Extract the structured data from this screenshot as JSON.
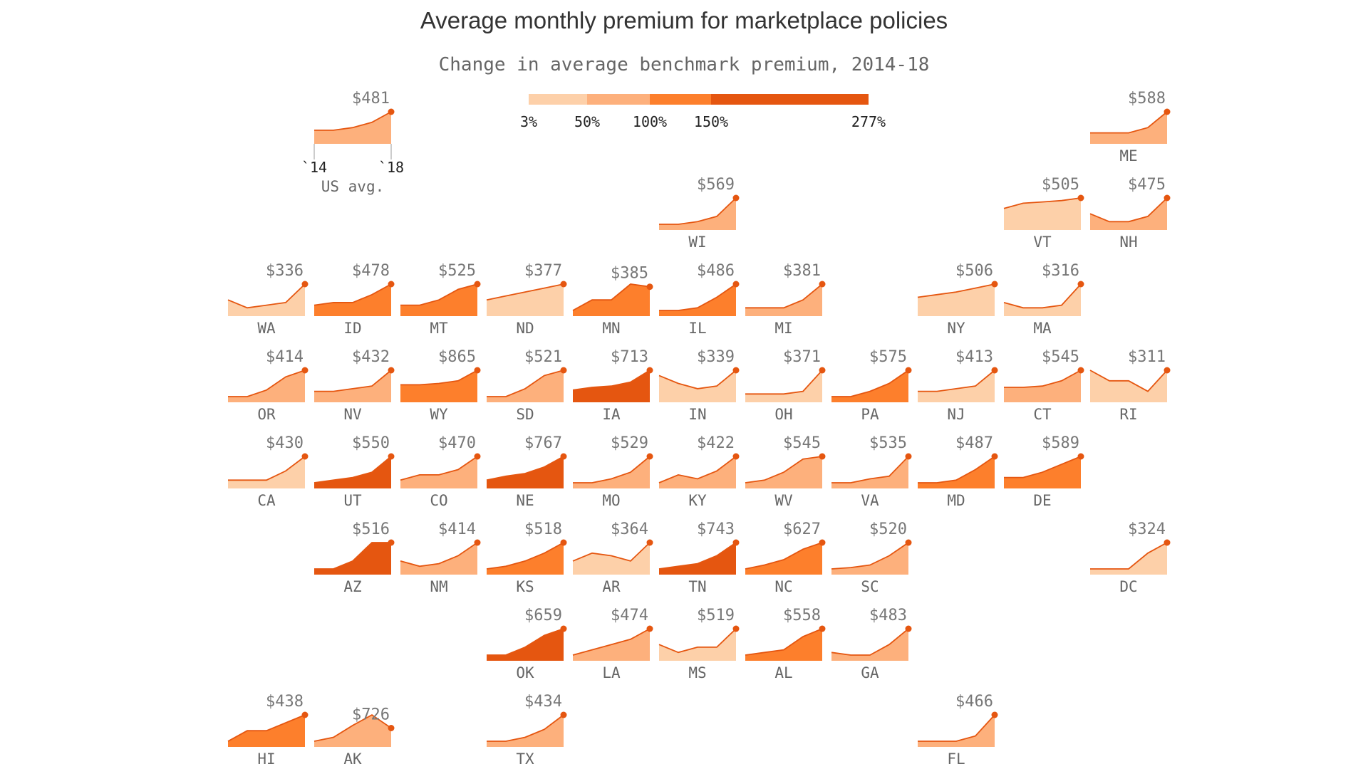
{
  "chart_data": {
    "type": "area",
    "title": "Average monthly premium for marketplace policies",
    "subtitle": "Change in average benchmark premium, 2014-18",
    "x_start_label": "`14",
    "x_end_label": "`18",
    "legend": {
      "ticks": [
        "3%",
        "50%",
        "100%",
        "150%",
        "277%"
      ],
      "bins": [
        {
          "from": 3,
          "to": 50,
          "color": "#fdd0a9"
        },
        {
          "from": 50,
          "to": 100,
          "color": "#fdb07c"
        },
        {
          "from": 100,
          "to": 150,
          "color": "#fd7f2c"
        },
        {
          "from": 150,
          "to": 277,
          "color": "#e55610"
        }
      ]
    },
    "line_color": "#e55610",
    "us_average": {
      "label": "US avg.",
      "value_label": "$481",
      "shape": [
        0.3,
        0.3,
        0.4,
        0.6,
        1.0
      ],
      "color": "#fdb07c"
    },
    "states": [
      {
        "abbr": "ME",
        "value_label": "$588",
        "shape": [
          0.2,
          0.2,
          0.2,
          0.4,
          1.0
        ],
        "color": "#fdb07c",
        "col": 10,
        "row": 0
      },
      {
        "abbr": "WI",
        "value_label": "$569",
        "shape": [
          0.0,
          0.0,
          0.1,
          0.3,
          1.0
        ],
        "color": "#fdb07c",
        "col": 5,
        "row": 1
      },
      {
        "abbr": "VT",
        "value_label": "$505",
        "shape": [
          0.6,
          0.8,
          0.85,
          0.9,
          1.0
        ],
        "color": "#fdd0a9",
        "col": 9,
        "row": 1
      },
      {
        "abbr": "NH",
        "value_label": "$475",
        "shape": [
          0.4,
          0.1,
          0.1,
          0.3,
          1.0
        ],
        "color": "#fdb07c",
        "col": 10,
        "row": 1
      },
      {
        "abbr": "WA",
        "value_label": "$336",
        "shape": [
          0.4,
          0.1,
          0.2,
          0.3,
          1.0
        ],
        "color": "#fdd0a9",
        "col": 0,
        "row": 2
      },
      {
        "abbr": "ID",
        "value_label": "$478",
        "shape": [
          0.2,
          0.3,
          0.3,
          0.6,
          1.0
        ],
        "color": "#fd7f2c",
        "col": 1,
        "row": 2
      },
      {
        "abbr": "MT",
        "value_label": "$525",
        "shape": [
          0.2,
          0.2,
          0.4,
          0.8,
          1.0
        ],
        "color": "#fd7f2c",
        "col": 2,
        "row": 2
      },
      {
        "abbr": "ND",
        "value_label": "$377",
        "shape": [
          0.4,
          0.55,
          0.7,
          0.85,
          1.0
        ],
        "color": "#fdd0a9",
        "col": 3,
        "row": 2
      },
      {
        "abbr": "MN",
        "value_label": "$385",
        "shape": [
          0.0,
          0.4,
          0.4,
          1.0,
          0.9
        ],
        "color": "#fd7f2c",
        "col": 4,
        "row": 2
      },
      {
        "abbr": "IL",
        "value_label": "$486",
        "shape": [
          0.0,
          0.0,
          0.1,
          0.5,
          1.0
        ],
        "color": "#fd7f2c",
        "col": 5,
        "row": 2
      },
      {
        "abbr": "MI",
        "value_label": "$381",
        "shape": [
          0.1,
          0.1,
          0.1,
          0.4,
          1.0
        ],
        "color": "#fdb07c",
        "col": 6,
        "row": 2
      },
      {
        "abbr": "NY",
        "value_label": "$506",
        "shape": [
          0.5,
          0.6,
          0.7,
          0.85,
          1.0
        ],
        "color": "#fdd0a9",
        "col": 8,
        "row": 2
      },
      {
        "abbr": "MA",
        "value_label": "$316",
        "shape": [
          0.3,
          0.1,
          0.1,
          0.2,
          1.0
        ],
        "color": "#fdd0a9",
        "col": 9,
        "row": 2
      },
      {
        "abbr": "OR",
        "value_label": "$414",
        "shape": [
          0.0,
          0.0,
          0.25,
          0.75,
          1.0
        ],
        "color": "#fdb07c",
        "col": 0,
        "row": 3
      },
      {
        "abbr": "NV",
        "value_label": "$432",
        "shape": [
          0.2,
          0.2,
          0.3,
          0.4,
          1.0
        ],
        "color": "#fdb07c",
        "col": 1,
        "row": 3
      },
      {
        "abbr": "WY",
        "value_label": "$865",
        "shape": [
          0.45,
          0.45,
          0.5,
          0.6,
          1.0
        ],
        "color": "#fd7f2c",
        "col": 2,
        "row": 3
      },
      {
        "abbr": "SD",
        "value_label": "$521",
        "shape": [
          0.0,
          0.0,
          0.3,
          0.8,
          1.0
        ],
        "color": "#fdb07c",
        "col": 3,
        "row": 3
      },
      {
        "abbr": "IA",
        "value_label": "$713",
        "shape": [
          0.25,
          0.35,
          0.4,
          0.55,
          1.0
        ],
        "color": "#e55610",
        "col": 4,
        "row": 3
      },
      {
        "abbr": "IN",
        "value_label": "$339",
        "shape": [
          0.8,
          0.5,
          0.3,
          0.4,
          1.0
        ],
        "color": "#fdd0a9",
        "col": 5,
        "row": 3
      },
      {
        "abbr": "OH",
        "value_label": "$371",
        "shape": [
          0.1,
          0.1,
          0.1,
          0.2,
          1.0
        ],
        "color": "#fdd0a9",
        "col": 6,
        "row": 3
      },
      {
        "abbr": "PA",
        "value_label": "$575",
        "shape": [
          0.0,
          0.0,
          0.2,
          0.5,
          1.0
        ],
        "color": "#fd7f2c",
        "col": 7,
        "row": 3
      },
      {
        "abbr": "NJ",
        "value_label": "$413",
        "shape": [
          0.2,
          0.2,
          0.3,
          0.4,
          1.0
        ],
        "color": "#fdd0a9",
        "col": 8,
        "row": 3
      },
      {
        "abbr": "CT",
        "value_label": "$545",
        "shape": [
          0.35,
          0.35,
          0.4,
          0.6,
          1.0
        ],
        "color": "#fdb07c",
        "col": 9,
        "row": 3
      },
      {
        "abbr": "RI",
        "value_label": "$311",
        "shape": [
          1.0,
          0.6,
          0.6,
          0.2,
          1.0
        ],
        "color": "#fdd0a9",
        "col": 10,
        "row": 3
      },
      {
        "abbr": "CA",
        "value_label": "$430",
        "shape": [
          0.1,
          0.1,
          0.1,
          0.45,
          1.0
        ],
        "color": "#fdd0a9",
        "col": 0,
        "row": 4
      },
      {
        "abbr": "UT",
        "value_label": "$550",
        "shape": [
          0.0,
          0.1,
          0.2,
          0.4,
          1.0
        ],
        "color": "#e55610",
        "col": 1,
        "row": 4
      },
      {
        "abbr": "CO",
        "value_label": "$470",
        "shape": [
          0.1,
          0.3,
          0.3,
          0.5,
          1.0
        ],
        "color": "#fdb07c",
        "col": 2,
        "row": 4
      },
      {
        "abbr": "NE",
        "value_label": "$767",
        "shape": [
          0.1,
          0.25,
          0.35,
          0.6,
          1.0
        ],
        "color": "#e55610",
        "col": 3,
        "row": 4
      },
      {
        "abbr": "MO",
        "value_label": "$529",
        "shape": [
          0.0,
          0.0,
          0.15,
          0.4,
          1.0
        ],
        "color": "#fdb07c",
        "col": 4,
        "row": 4
      },
      {
        "abbr": "KY",
        "value_label": "$422",
        "shape": [
          0.0,
          0.3,
          0.15,
          0.45,
          1.0
        ],
        "color": "#fdb07c",
        "col": 5,
        "row": 4
      },
      {
        "abbr": "WV",
        "value_label": "$545",
        "shape": [
          0.0,
          0.1,
          0.4,
          0.9,
          1.0
        ],
        "color": "#fdb07c",
        "col": 6,
        "row": 4
      },
      {
        "abbr": "VA",
        "value_label": "$535",
        "shape": [
          0.0,
          0.0,
          0.15,
          0.25,
          1.0
        ],
        "color": "#fdb07c",
        "col": 7,
        "row": 4
      },
      {
        "abbr": "MD",
        "value_label": "$487",
        "shape": [
          0.0,
          0.0,
          0.1,
          0.5,
          1.0
        ],
        "color": "#fd7f2c",
        "col": 8,
        "row": 4
      },
      {
        "abbr": "DE",
        "value_label": "$589",
        "shape": [
          0.2,
          0.2,
          0.4,
          0.7,
          1.0
        ],
        "color": "#fd7f2c",
        "col": 9,
        "row": 4
      },
      {
        "abbr": "AZ",
        "value_label": "$516",
        "shape": [
          0.0,
          0.0,
          0.3,
          1.0,
          1.0
        ],
        "color": "#e55610",
        "col": 1,
        "row": 5
      },
      {
        "abbr": "NM",
        "value_label": "$414",
        "shape": [
          0.3,
          0.1,
          0.2,
          0.5,
          1.0
        ],
        "color": "#fdb07c",
        "col": 2,
        "row": 5
      },
      {
        "abbr": "KS",
        "value_label": "$518",
        "shape": [
          0.0,
          0.1,
          0.3,
          0.6,
          1.0
        ],
        "color": "#fd7f2c",
        "col": 3,
        "row": 5
      },
      {
        "abbr": "AR",
        "value_label": "$364",
        "shape": [
          0.3,
          0.6,
          0.5,
          0.3,
          1.0
        ],
        "color": "#fdd0a9",
        "col": 4,
        "row": 5
      },
      {
        "abbr": "TN",
        "value_label": "$743",
        "shape": [
          0.0,
          0.1,
          0.2,
          0.5,
          1.0
        ],
        "color": "#e55610",
        "col": 5,
        "row": 5
      },
      {
        "abbr": "NC",
        "value_label": "$627",
        "shape": [
          0.0,
          0.15,
          0.35,
          0.75,
          1.0
        ],
        "color": "#fd7f2c",
        "col": 6,
        "row": 5
      },
      {
        "abbr": "SC",
        "value_label": "$520",
        "shape": [
          0.0,
          0.05,
          0.15,
          0.5,
          1.0
        ],
        "color": "#fdb07c",
        "col": 7,
        "row": 5
      },
      {
        "abbr": "DC",
        "value_label": "$324",
        "shape": [
          0.0,
          0.0,
          0.0,
          0.6,
          1.0
        ],
        "color": "#fdd0a9",
        "col": 10,
        "row": 5
      },
      {
        "abbr": "OK",
        "value_label": "$659",
        "shape": [
          0.0,
          0.0,
          0.3,
          0.75,
          1.0
        ],
        "color": "#e55610",
        "col": 3,
        "row": 6
      },
      {
        "abbr": "LA",
        "value_label": "$474",
        "shape": [
          0.0,
          0.2,
          0.4,
          0.6,
          1.0
        ],
        "color": "#fdb07c",
        "col": 4,
        "row": 6
      },
      {
        "abbr": "MS",
        "value_label": "$519",
        "shape": [
          0.4,
          0.1,
          0.3,
          0.3,
          1.0
        ],
        "color": "#fdd0a9",
        "col": 5,
        "row": 6
      },
      {
        "abbr": "AL",
        "value_label": "$558",
        "shape": [
          0.0,
          0.1,
          0.2,
          0.7,
          1.0
        ],
        "color": "#fd7f2c",
        "col": 6,
        "row": 6
      },
      {
        "abbr": "GA",
        "value_label": "$483",
        "shape": [
          0.1,
          0.0,
          0.0,
          0.4,
          1.0
        ],
        "color": "#fdb07c",
        "col": 7,
        "row": 6
      },
      {
        "abbr": "HI",
        "value_label": "$438",
        "shape": [
          0.0,
          0.4,
          0.4,
          0.7,
          1.0
        ],
        "color": "#fd7f2c",
        "col": 0,
        "row": 7
      },
      {
        "abbr": "AK",
        "value_label": "$726",
        "shape": [
          0.0,
          0.15,
          0.6,
          1.0,
          0.5
        ],
        "color": "#fdb07c",
        "col": 1,
        "row": 7
      },
      {
        "abbr": "TX",
        "value_label": "$434",
        "shape": [
          0.0,
          0.0,
          0.15,
          0.45,
          1.0
        ],
        "color": "#fdb07c",
        "col": 3,
        "row": 7
      },
      {
        "abbr": "FL",
        "value_label": "$466",
        "shape": [
          0.0,
          0.0,
          0.0,
          0.2,
          1.0
        ],
        "color": "#fdb07c",
        "col": 8,
        "row": 7
      }
    ]
  }
}
